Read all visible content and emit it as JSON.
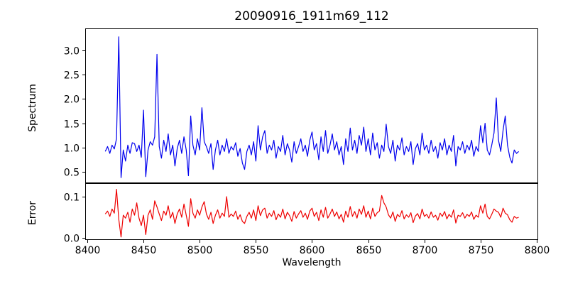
{
  "chart_data": {
    "type": "line",
    "title": "20090916_1911m69_112",
    "xlabel": "Wavelength",
    "grid": false,
    "legend": "none",
    "x_start": 8416,
    "x_step": 2,
    "xlim": [
      8398.1,
      8801.3
    ],
    "xticks": {
      "values": [
        8400,
        8450,
        8500,
        8550,
        8600,
        8650,
        8700,
        8750,
        8800
      ],
      "labels": [
        "8400",
        "8450",
        "8500",
        "8550",
        "8600",
        "8650",
        "8700",
        "8750",
        "8800"
      ]
    },
    "panels": [
      {
        "name": "spectrum",
        "ylabel": "Spectrum",
        "color": "#0000ee",
        "ylim": [
          0.266,
          3.453
        ],
        "yticks": {
          "values": [
            0.5,
            1.0,
            1.5,
            2.0,
            2.5,
            3.0
          ],
          "labels": [
            "0.5",
            "1.0",
            "1.5",
            "2.0",
            "2.5",
            "3.0"
          ]
        },
        "values": [
          0.92,
          1.02,
          0.88,
          1.05,
          0.97,
          1.18,
          3.28,
          0.38,
          0.95,
          0.72,
          1.05,
          0.88,
          1.1,
          1.08,
          0.92,
          1.05,
          0.8,
          1.77,
          0.4,
          0.95,
          1.12,
          1.05,
          1.22,
          2.92,
          1.02,
          0.78,
          1.15,
          0.92,
          1.28,
          0.85,
          1.05,
          0.62,
          0.98,
          1.15,
          0.88,
          1.22,
          0.95,
          0.42,
          1.65,
          1.05,
          0.85,
          1.18,
          0.95,
          1.82,
          1.12,
          1.02,
          0.88,
          1.08,
          0.55,
          0.95,
          1.15,
          0.85,
          1.05,
          0.92,
          1.18,
          0.88,
          1.02,
          0.95,
          1.1,
          0.82,
          0.98,
          0.68,
          0.55,
          0.92,
          1.05,
          0.85,
          1.12,
          0.72,
          1.45,
          0.95,
          1.22,
          1.35,
          0.88,
          1.05,
          0.95,
          1.15,
          0.78,
          1.02,
          0.92,
          1.25,
          0.85,
          1.08,
          0.95,
          0.7,
          1.12,
          0.88,
          1.02,
          1.18,
          0.92,
          1.05,
          0.82,
          1.15,
          1.32,
          0.95,
          1.08,
          0.75,
          1.22,
          0.92,
          1.35,
          0.88,
          1.05,
          1.28,
          0.95,
          1.12,
          0.85,
          1.02,
          0.65,
          1.18,
          0.92,
          1.4,
          0.95,
          1.15,
          0.88,
          1.25,
          1.05,
          1.42,
          0.92,
          1.18,
          0.85,
          1.3,
          0.95,
          1.1,
          0.78,
          1.05,
          0.92,
          1.48,
          1.02,
          0.88,
          1.15,
          0.72,
          1.05,
          0.95,
          1.2,
          0.85,
          1.02,
          0.92,
          1.12,
          0.65,
          0.98,
          1.08,
          0.85,
          1.3,
          0.95,
          1.05,
          0.88,
          1.15,
          0.92,
          1.02,
          0.78,
          1.1,
          0.95,
          1.18,
          0.85,
          1.05,
          0.92,
          1.25,
          0.62,
          1.02,
          0.95,
          1.12,
          0.88,
          1.05,
          0.95,
          1.15,
          0.82,
          1.02,
          0.92,
          1.45,
          1.1,
          1.5,
          0.95,
          0.85,
          1.05,
          1.3,
          2.02,
          1.15,
          0.92,
          1.35,
          1.65,
          1.05,
          0.8,
          0.68,
          0.95,
          0.88,
          0.92
        ]
      },
      {
        "name": "error",
        "ylabel": "Error",
        "color": "#ee0000",
        "ylim": [
          -0.00517,
          0.13276
        ],
        "yticks": {
          "values": [
            0.0,
            0.1
          ],
          "labels": [
            "0.0",
            "0.1"
          ]
        },
        "values": [
          0.058,
          0.065,
          0.052,
          0.07,
          0.06,
          0.118,
          0.045,
          0.002,
          0.055,
          0.048,
          0.062,
          0.038,
          0.07,
          0.055,
          0.085,
          0.048,
          0.03,
          0.055,
          0.008,
          0.055,
          0.068,
          0.045,
          0.09,
          0.075,
          0.058,
          0.042,
          0.065,
          0.055,
          0.078,
          0.048,
          0.062,
          0.035,
          0.058,
          0.07,
          0.05,
          0.082,
          0.055,
          0.028,
          0.095,
          0.06,
          0.048,
          0.068,
          0.055,
          0.075,
          0.088,
          0.058,
          0.045,
          0.062,
          0.035,
          0.055,
          0.068,
          0.048,
          0.06,
          0.052,
          0.1,
          0.05,
          0.058,
          0.052,
          0.065,
          0.045,
          0.056,
          0.04,
          0.035,
          0.052,
          0.062,
          0.048,
          0.068,
          0.042,
          0.078,
          0.054,
          0.068,
          0.072,
          0.048,
          0.06,
          0.052,
          0.066,
          0.044,
          0.058,
          0.05,
          0.07,
          0.046,
          0.062,
          0.054,
          0.04,
          0.064,
          0.048,
          0.058,
          0.066,
          0.05,
          0.06,
          0.045,
          0.065,
          0.072,
          0.052,
          0.062,
          0.042,
          0.068,
          0.05,
          0.074,
          0.048,
          0.058,
          0.07,
          0.052,
          0.063,
          0.046,
          0.057,
          0.038,
          0.065,
          0.05,
          0.076,
          0.052,
          0.064,
          0.048,
          0.07,
          0.057,
          0.078,
          0.05,
          0.065,
          0.046,
          0.072,
          0.052,
          0.061,
          0.065,
          0.103,
          0.085,
          0.075,
          0.056,
          0.048,
          0.063,
          0.04,
          0.057,
          0.051,
          0.066,
          0.046,
          0.056,
          0.05,
          0.061,
          0.037,
          0.053,
          0.059,
          0.046,
          0.07,
          0.052,
          0.057,
          0.048,
          0.063,
          0.05,
          0.055,
          0.043,
          0.06,
          0.052,
          0.064,
          0.046,
          0.057,
          0.05,
          0.068,
          0.036,
          0.055,
          0.052,
          0.061,
          0.048,
          0.057,
          0.052,
          0.063,
          0.045,
          0.055,
          0.05,
          0.078,
          0.06,
          0.082,
          0.052,
          0.046,
          0.057,
          0.07,
          0.065,
          0.062,
          0.05,
          0.072,
          0.06,
          0.056,
          0.044,
          0.038,
          0.052,
          0.048,
          0.05
        ]
      }
    ]
  }
}
